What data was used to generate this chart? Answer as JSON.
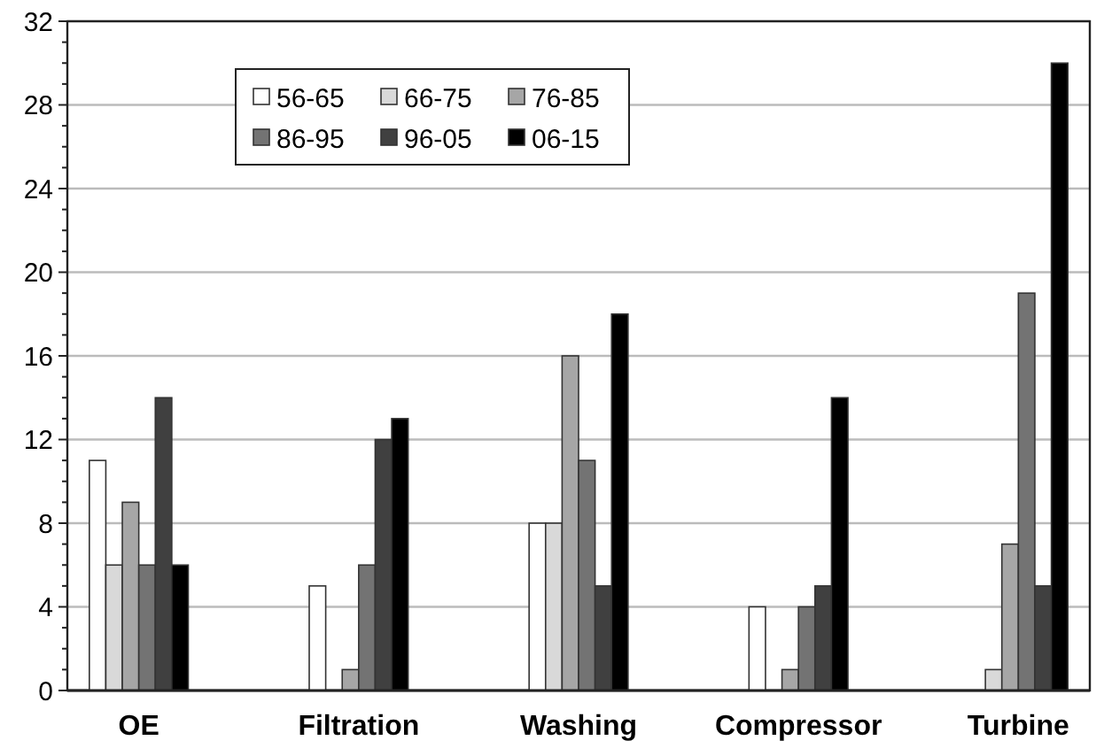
{
  "chart_data": {
    "type": "bar",
    "categories": [
      "OE",
      "Filtration",
      "Washing",
      "Compressor",
      "Turbine"
    ],
    "series": [
      {
        "name": "56-65",
        "color": "#ffffff",
        "values": [
          11,
          5,
          8,
          4,
          0
        ]
      },
      {
        "name": "66-75",
        "color": "#d9d9d9",
        "values": [
          6,
          0,
          8,
          0,
          1
        ]
      },
      {
        "name": "76-85",
        "color": "#a6a6a6",
        "values": [
          9,
          1,
          16,
          1,
          7
        ]
      },
      {
        "name": "86-95",
        "color": "#737373",
        "values": [
          6,
          6,
          11,
          4,
          19
        ]
      },
      {
        "name": "96-05",
        "color": "#404040",
        "values": [
          14,
          12,
          5,
          5,
          5
        ]
      },
      {
        "name": "06-15",
        "color": "#000000",
        "values": [
          6,
          13,
          18,
          14,
          30
        ]
      }
    ],
    "ylim": [
      0,
      32
    ],
    "yticks": [
      0,
      {
        "value": 1,
        "label": null
      },
      {
        "value": 2,
        "label": null
      },
      {
        "value": 3,
        "label": null
      },
      4,
      {
        "value": 5,
        "label": null
      },
      {
        "value": 6,
        "label": null
      },
      {
        "value": 7,
        "label": null
      },
      8,
      {
        "value": 9,
        "label": null
      },
      {
        "value": 10,
        "label": null
      },
      {
        "value": 11,
        "label": null
      },
      12,
      {
        "value": 13,
        "label": null
      },
      {
        "value": 14,
        "label": null
      },
      {
        "value": 15,
        "label": null
      },
      16,
      {
        "value": 17,
        "label": null
      },
      {
        "value": 18,
        "label": null
      },
      {
        "value": 19,
        "label": null
      },
      20,
      {
        "value": 21,
        "label": null
      },
      {
        "value": 22,
        "label": null
      },
      {
        "value": 23,
        "label": null
      },
      24,
      {
        "value": 25,
        "label": null
      },
      {
        "value": 26,
        "label": null
      },
      {
        "value": 27,
        "label": null
      },
      28,
      {
        "value": 29,
        "label": null
      },
      {
        "value": 30,
        "label": null
      },
      {
        "value": 31,
        "label": null
      },
      32
    ],
    "grid": "y",
    "legend": "top left"
  }
}
